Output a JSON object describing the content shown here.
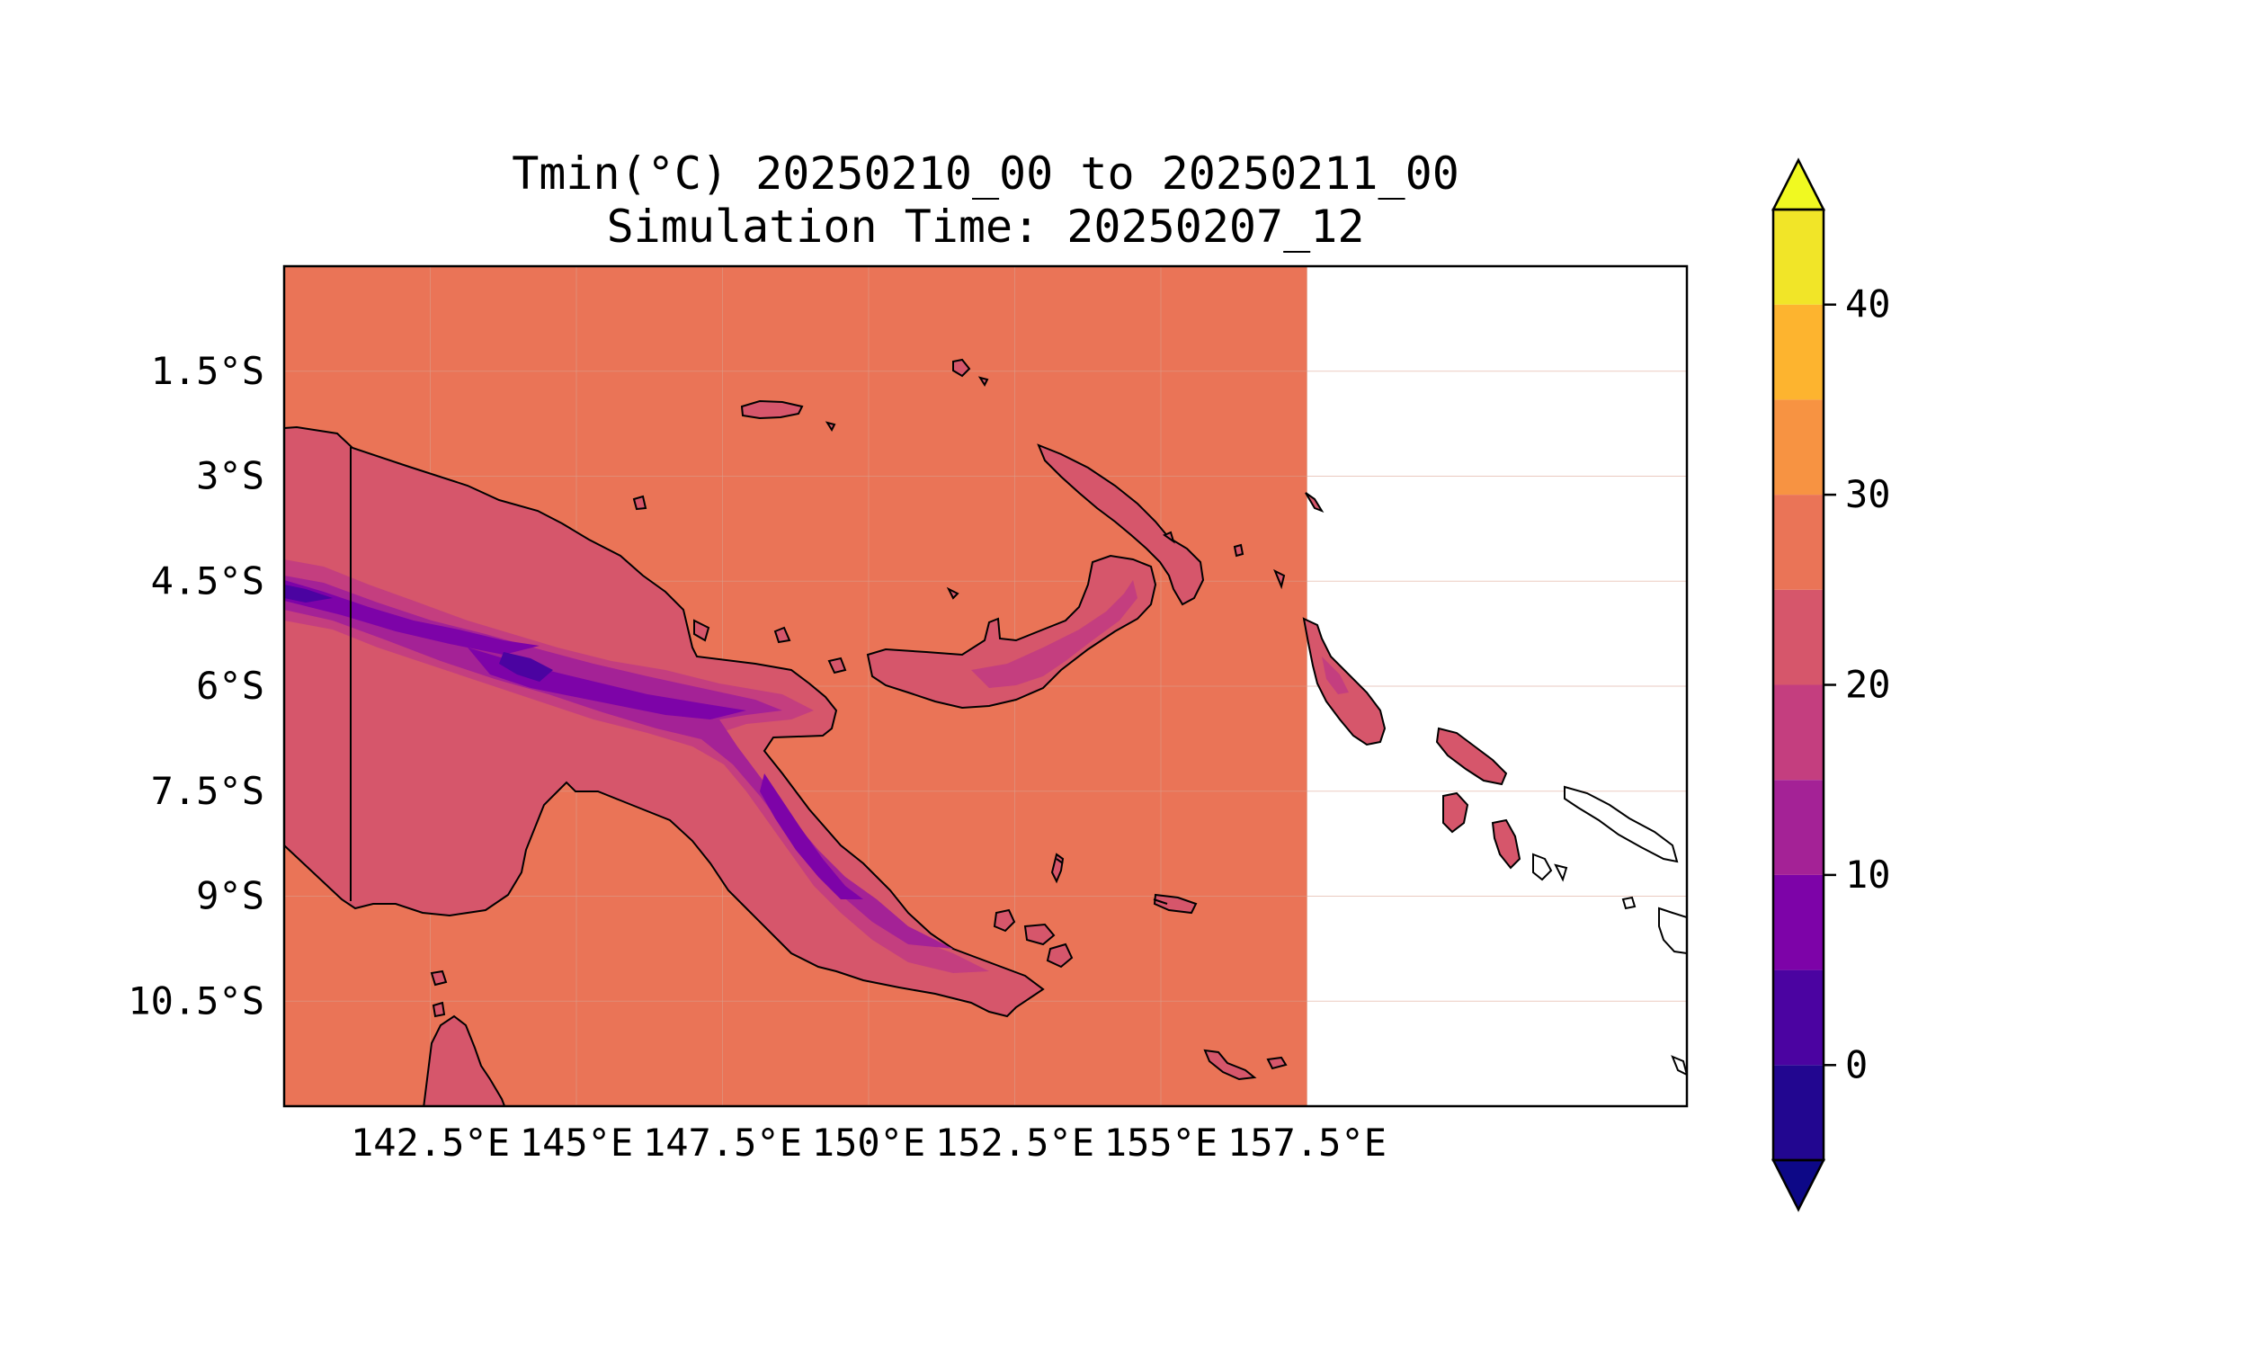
{
  "figure": {
    "title_line_1": "Tmin(°C) 20250210_00 to 20250211_00",
    "title_line_2": "Simulation Time: 20250207_12"
  },
  "map": {
    "extent_lon": [
      140.0,
      164.0
    ],
    "extent_lat": [
      -12.0,
      0.0
    ],
    "data_lon_max": 157.5,
    "ocean_value_c": 27,
    "lat_ticks": [
      {
        "value": -1.5,
        "label": "1.5°S"
      },
      {
        "value": -3.0,
        "label": "3°S"
      },
      {
        "value": -4.5,
        "label": "4.5°S"
      },
      {
        "value": -6.0,
        "label": "6°S"
      },
      {
        "value": -7.5,
        "label": "7.5°S"
      },
      {
        "value": -9.0,
        "label": "9°S"
      },
      {
        "value": -10.5,
        "label": "10.5°S"
      }
    ],
    "lon_ticks": [
      {
        "value": 142.5,
        "label": "142.5°E"
      },
      {
        "value": 145.0,
        "label": "145°E"
      },
      {
        "value": 147.5,
        "label": "147.5°E"
      },
      {
        "value": 150.0,
        "label": "150°E"
      },
      {
        "value": 152.5,
        "label": "152.5°E"
      },
      {
        "value": 155.0,
        "label": "155°E"
      },
      {
        "value": 157.5,
        "label": "157.5°E"
      }
    ]
  },
  "colorbar": {
    "min": -5,
    "max": 45,
    "levels": [
      {
        "from": -5,
        "to": 0,
        "color": "#220690"
      },
      {
        "from": 0,
        "to": 5,
        "color": "#4b03a1"
      },
      {
        "from": 5,
        "to": 10,
        "color": "#7d03a8"
      },
      {
        "from": 10,
        "to": 15,
        "color": "#a42296"
      },
      {
        "from": 15,
        "to": 20,
        "color": "#c43e7f"
      },
      {
        "from": 20,
        "to": 25,
        "color": "#d6566b"
      },
      {
        "from": 25,
        "to": 30,
        "color": "#ea7457"
      },
      {
        "from": 30,
        "to": 35,
        "color": "#f79342"
      },
      {
        "from": 35,
        "to": 40,
        "color": "#fdb42f"
      },
      {
        "from": 40,
        "to": 45,
        "color": "#f1e528"
      }
    ],
    "under_color": "#0d0887",
    "over_color": "#f0f921",
    "ticks": [
      {
        "value": 0,
        "label": "0"
      },
      {
        "value": 10,
        "label": "10"
      },
      {
        "value": 20,
        "label": "20"
      },
      {
        "value": 30,
        "label": "30"
      },
      {
        "value": 40,
        "label": "40"
      }
    ]
  },
  "colors": {
    "ocean_fill": "#ea7457",
    "coastline": "#000000",
    "grid": "#d9a08e"
  }
}
